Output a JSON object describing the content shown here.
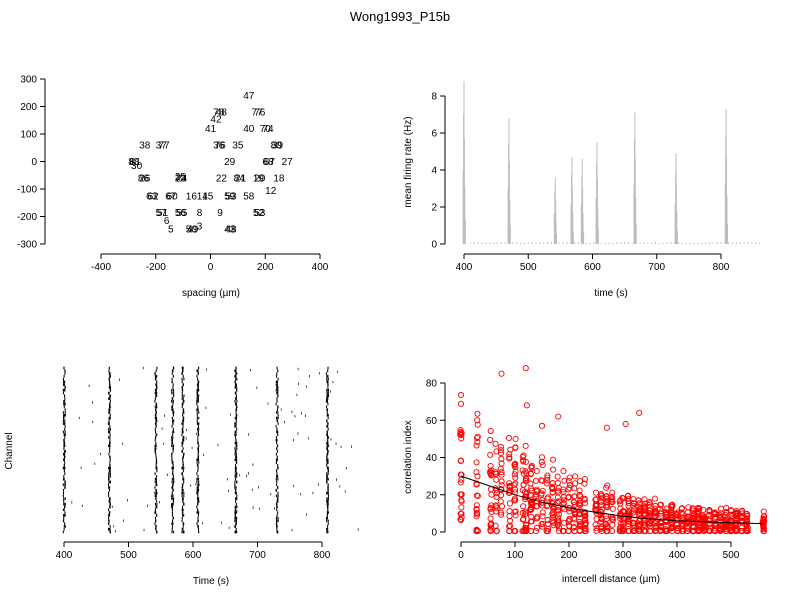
{
  "page": {
    "title": "Wong1993_P15b"
  },
  "colors": {
    "axis": "#000000",
    "rate": "#bdbdbd",
    "raster": "#000000",
    "scatter": "#ff0000",
    "fit": "#000000"
  },
  "chart_data": [
    {
      "id": "electrode-layout",
      "type": "scatter",
      "xlabel": "spacing (µm)",
      "ylabel": "",
      "xlim": [
        -400,
        400
      ],
      "ylim": [
        -300,
        300
      ],
      "xticks": [
        -400,
        -200,
        0,
        200,
        400
      ],
      "yticks": [
        -300,
        -200,
        -100,
        0,
        100,
        200,
        300
      ],
      "points": [
        {
          "label": "47",
          "x": 140,
          "y": 240
        },
        {
          "label": "48",
          "x": 40,
          "y": 180
        },
        {
          "label": "78",
          "x": 30,
          "y": 180
        },
        {
          "label": "76",
          "x": 180,
          "y": 180
        },
        {
          "label": "77",
          "x": 170,
          "y": 180
        },
        {
          "label": "42",
          "x": 20,
          "y": 155
        },
        {
          "label": "41",
          "x": 0,
          "y": 120
        },
        {
          "label": "40",
          "x": 140,
          "y": 120
        },
        {
          "label": "74",
          "x": 210,
          "y": 120
        },
        {
          "label": "70",
          "x": 200,
          "y": 120
        },
        {
          "label": "38",
          "x": -240,
          "y": 60
        },
        {
          "label": "37",
          "x": -180,
          "y": 60
        },
        {
          "label": "77",
          "x": -170,
          "y": 60
        },
        {
          "label": "36",
          "x": 30,
          "y": 60
        },
        {
          "label": "76",
          "x": 35,
          "y": 60
        },
        {
          "label": "35",
          "x": 100,
          "y": 60
        },
        {
          "label": "80",
          "x": 240,
          "y": 60
        },
        {
          "label": "39",
          "x": 245,
          "y": 60
        },
        {
          "label": "29",
          "x": 70,
          "y": 0
        },
        {
          "label": "88",
          "x": -280,
          "y": 0
        },
        {
          "label": "81",
          "x": -275,
          "y": 0
        },
        {
          "label": "30",
          "x": -270,
          "y": -15
        },
        {
          "label": "68",
          "x": 210,
          "y": 0
        },
        {
          "label": "67",
          "x": 215,
          "y": 0
        },
        {
          "label": "27",
          "x": 280,
          "y": 0
        },
        {
          "label": "25",
          "x": -110,
          "y": -55
        },
        {
          "label": "26",
          "x": -240,
          "y": -60
        },
        {
          "label": "86",
          "x": -245,
          "y": -60
        },
        {
          "label": "23",
          "x": -110,
          "y": -60
        },
        {
          "label": "24",
          "x": -105,
          "y": -60
        },
        {
          "label": "22",
          "x": 40,
          "y": -60
        },
        {
          "label": "21",
          "x": 110,
          "y": -60
        },
        {
          "label": "84",
          "x": 105,
          "y": -60
        },
        {
          "label": "20",
          "x": 180,
          "y": -60
        },
        {
          "label": "19",
          "x": 175,
          "y": -60
        },
        {
          "label": "18",
          "x": 250,
          "y": -60
        },
        {
          "label": "12",
          "x": 220,
          "y": -105
        },
        {
          "label": "62",
          "x": -210,
          "y": -125
        },
        {
          "label": "63",
          "x": -215,
          "y": -125
        },
        {
          "label": "60",
          "x": -140,
          "y": -125
        },
        {
          "label": "67",
          "x": -145,
          "y": -125
        },
        {
          "label": "16",
          "x": -70,
          "y": -125
        },
        {
          "label": "14",
          "x": -30,
          "y": -125
        },
        {
          "label": "15",
          "x": -10,
          "y": -125
        },
        {
          "label": "59",
          "x": 70,
          "y": -125
        },
        {
          "label": "53",
          "x": 75,
          "y": -125
        },
        {
          "label": "58",
          "x": 140,
          "y": -125
        },
        {
          "label": "57",
          "x": -180,
          "y": -185
        },
        {
          "label": "51",
          "x": -175,
          "y": -185
        },
        {
          "label": "56",
          "x": -110,
          "y": -185
        },
        {
          "label": "55",
          "x": -105,
          "y": -185
        },
        {
          "label": "8",
          "x": -40,
          "y": -185
        },
        {
          "label": "9",
          "x": 35,
          "y": -185
        },
        {
          "label": "52",
          "x": 175,
          "y": -185
        },
        {
          "label": "53",
          "x": 180,
          "y": -185
        },
        {
          "label": "6",
          "x": -160,
          "y": -215
        },
        {
          "label": "5",
          "x": -145,
          "y": -245
        },
        {
          "label": "4",
          "x": -75,
          "y": -245
        },
        {
          "label": "50",
          "x": -70,
          "y": -245
        },
        {
          "label": "49",
          "x": -65,
          "y": -245
        },
        {
          "label": "3",
          "x": -40,
          "y": -235
        },
        {
          "label": "43",
          "x": 70,
          "y": -245
        },
        {
          "label": "48",
          "x": 75,
          "y": -245
        }
      ]
    },
    {
      "id": "mean-firing-rate",
      "type": "bar",
      "xlabel": "time (s)",
      "ylabel": "mean firing rate (Hz)",
      "xlim": [
        392,
        870
      ],
      "ylim": [
        0,
        9
      ],
      "xticks": [
        400,
        500,
        600,
        700,
        800
      ],
      "yticks": [
        0,
        2,
        4,
        6,
        8
      ],
      "bursts": [
        {
          "t": 400,
          "rate": 8.8
        },
        {
          "t": 470,
          "rate": 6.8
        },
        {
          "t": 542,
          "rate": 3.6
        },
        {
          "t": 568,
          "rate": 4.7
        },
        {
          "t": 584,
          "rate": 4.6
        },
        {
          "t": 607,
          "rate": 5.5
        },
        {
          "t": 666,
          "rate": 7.1
        },
        {
          "t": 730,
          "rate": 4.9
        },
        {
          "t": 808,
          "rate": 7.3
        }
      ]
    },
    {
      "id": "spike-raster",
      "type": "scatter",
      "xlabel": "Time (s)",
      "ylabel": "Channel",
      "xlim": [
        392,
        870
      ],
      "xticks": [
        400,
        500,
        600,
        700,
        800
      ],
      "bursts": [
        400,
        470,
        542,
        568,
        584,
        607,
        666,
        730,
        808
      ],
      "channels": 60
    },
    {
      "id": "correlation-index",
      "type": "scatter",
      "xlabel": "intercell distance (µm)",
      "ylabel": "correlation index",
      "xlim": [
        0,
        560
      ],
      "ylim": [
        0,
        90
      ],
      "xticks": [
        0,
        100,
        200,
        300,
        400,
        500
      ],
      "yticks": [
        0,
        20,
        40,
        60,
        80
      ],
      "fit": [
        [
          0,
          30
        ],
        [
          50,
          25
        ],
        [
          100,
          20
        ],
        [
          150,
          16
        ],
        [
          200,
          13
        ],
        [
          250,
          10.5
        ],
        [
          300,
          8.5
        ],
        [
          350,
          7
        ],
        [
          400,
          6
        ],
        [
          450,
          5.5
        ],
        [
          500,
          5
        ],
        [
          560,
          4.5
        ]
      ],
      "highlights": [
        [
          75,
          85
        ],
        [
          120,
          88
        ],
        [
          122,
          68
        ],
        [
          330,
          64
        ],
        [
          150,
          57
        ],
        [
          305,
          58
        ],
        [
          270,
          56
        ],
        [
          30,
          60
        ],
        [
          180,
          62
        ]
      ],
      "distances": [
        0,
        30,
        55,
        65,
        75,
        90,
        100,
        115,
        120,
        130,
        140,
        150,
        160,
        170,
        180,
        190,
        200,
        210,
        220,
        230,
        250,
        260,
        270,
        280,
        295,
        300,
        310,
        320,
        330,
        340,
        350,
        360,
        370,
        380,
        390,
        400,
        410,
        420,
        430,
        440,
        450,
        460,
        470,
        480,
        490,
        500,
        510,
        520,
        530,
        560
      ]
    }
  ]
}
